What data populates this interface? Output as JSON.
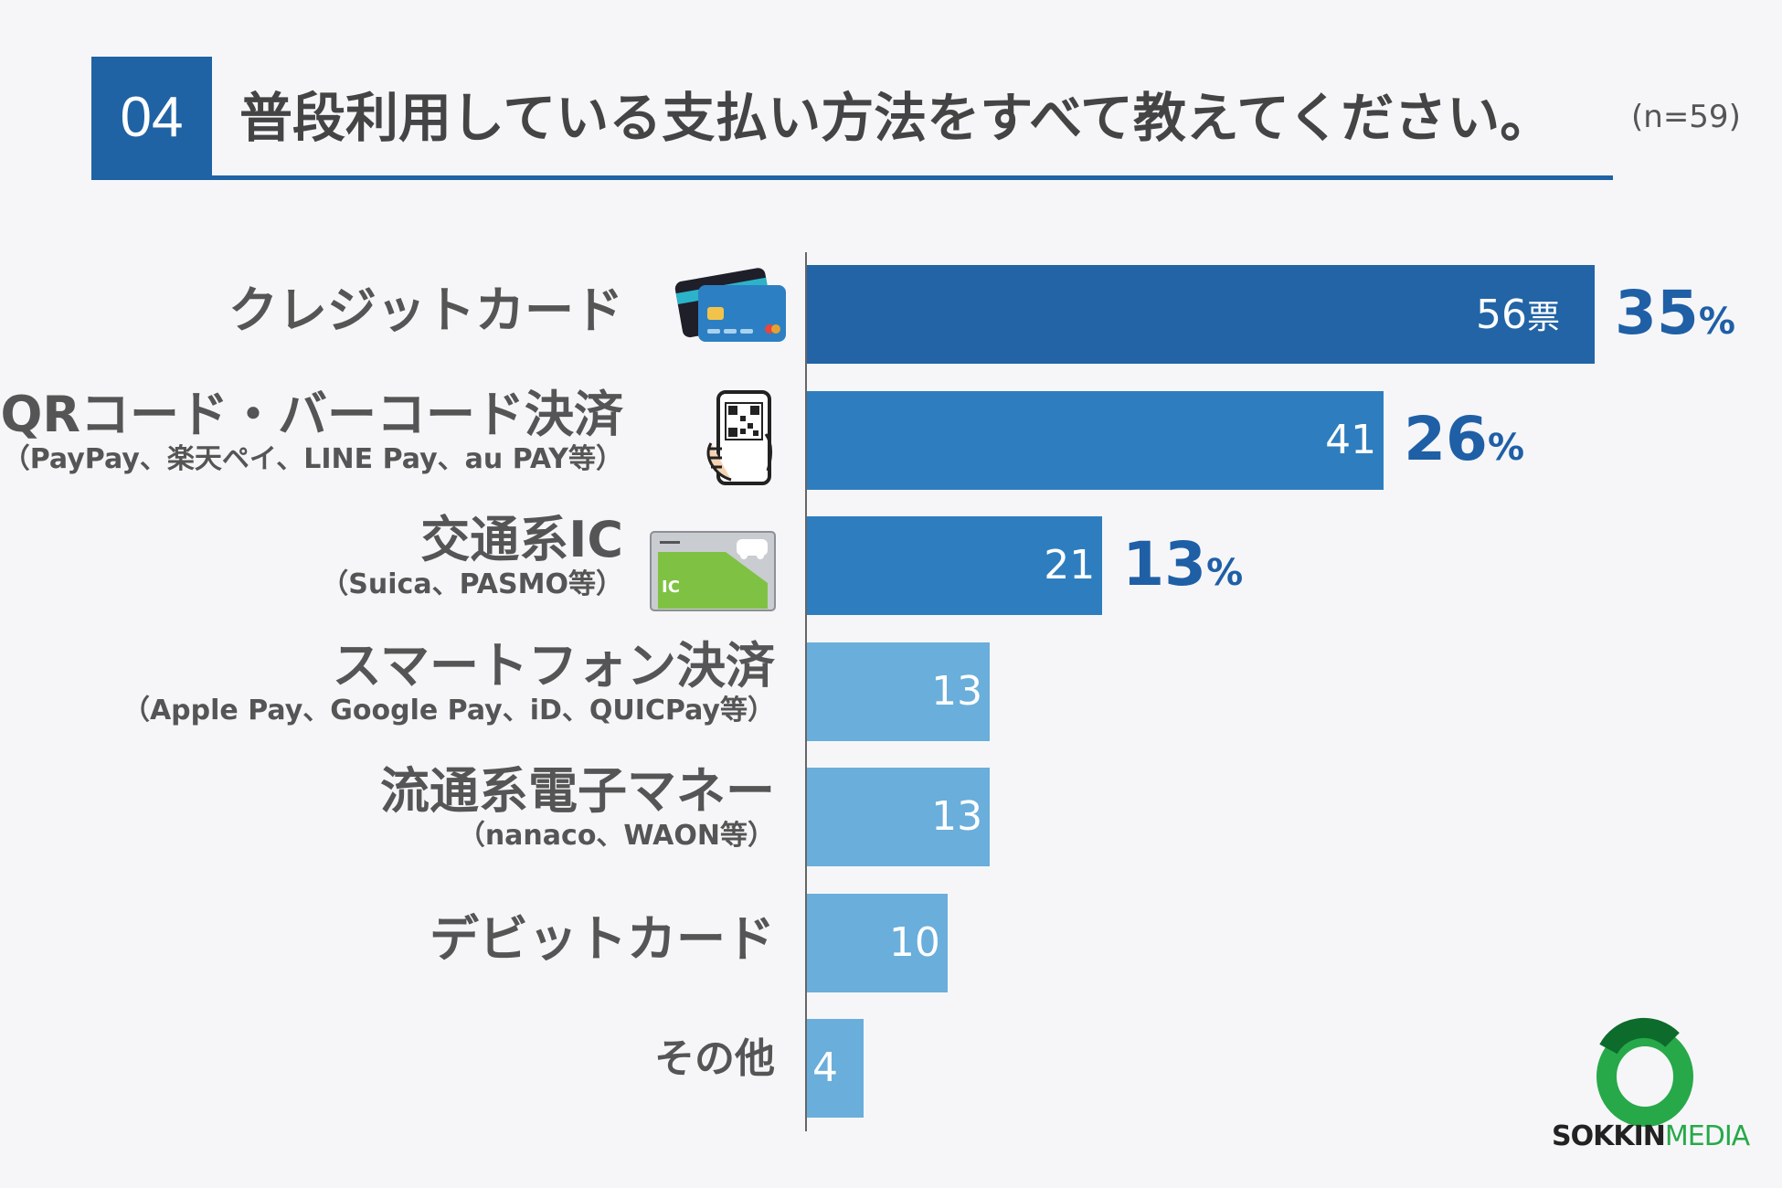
{
  "header": {
    "question_number": "04",
    "title": "普段利用している支払い方法をすべて教えてください。",
    "sample": "(n=59)"
  },
  "colors": {
    "accent": "#1f63a5",
    "bar_dark": "#2264a6",
    "bar_mid": "#2e7ebf",
    "bar_light": "#6aaedb",
    "percent_text": "#1f5fa6"
  },
  "chart_data": {
    "type": "bar",
    "orientation": "horizontal",
    "title": "普段利用している支払い方法をすべて教えてください。",
    "categories": [
      "クレジットカード",
      "QRコード・バーコード決済",
      "交通系IC",
      "スマートフォン決済",
      "流通系電子マネー",
      "デビットカード",
      "その他"
    ],
    "sublabels": [
      "",
      "（PayPay、楽天ペイ、LINE Pay、au PAY等）",
      "（Suica、PASMO等）",
      "（Apple Pay、Google Pay、iD、QUICPay等）",
      "（nanaco、WAON等）",
      "",
      ""
    ],
    "values": [
      56,
      41,
      21,
      13,
      13,
      10,
      4
    ],
    "value_unit": "票",
    "percentages": [
      35,
      26,
      13,
      null,
      null,
      null,
      null
    ],
    "percent_sign": "%",
    "icons": [
      "credit-card-icon",
      "qr-phone-icon",
      "ic-card-icon",
      null,
      null,
      null,
      null
    ],
    "xlim": [
      0,
      60
    ],
    "grid": false,
    "legend": "none"
  },
  "brand": {
    "name_part1": "SOKKIN",
    "name_part2": "MEDIA"
  }
}
